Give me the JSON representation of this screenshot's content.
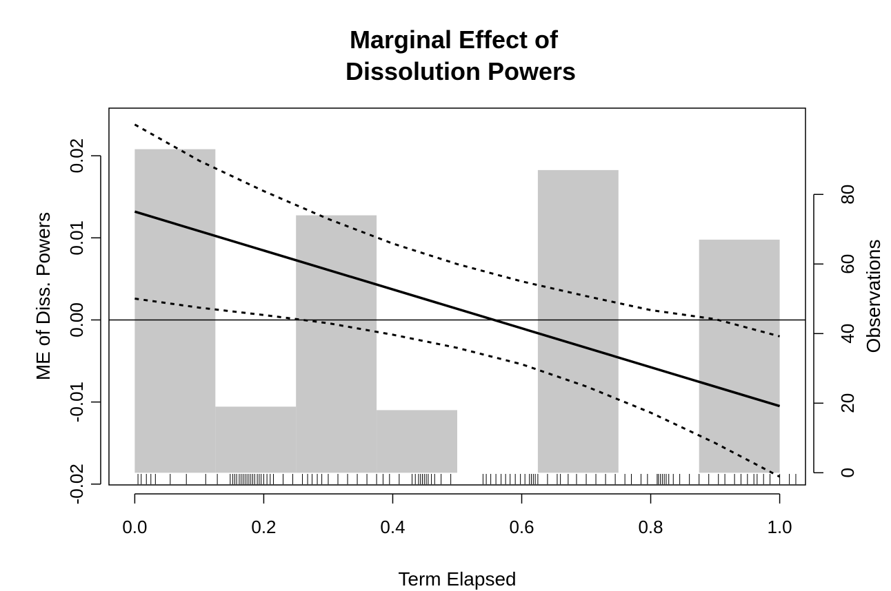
{
  "chart_data": {
    "type": "line",
    "title_lines": [
      "Marginal Effect of",
      "Dissolution Powers"
    ],
    "xlabel": "Term Elapsed",
    "ylabel": "ME of Diss. Powers",
    "y2label": "Observations",
    "xlim": [
      -0.04,
      1.04
    ],
    "ylim": [
      -0.0201,
      0.0258
    ],
    "y2lim": [
      -3.5,
      104.8
    ],
    "xticks": [
      0.0,
      0.2,
      0.4,
      0.6,
      0.8,
      1.0
    ],
    "xtick_labels": [
      "0.0",
      "0.2",
      "0.4",
      "0.6",
      "0.8",
      "1.0"
    ],
    "yticks": [
      -0.02,
      -0.01,
      0.0,
      0.01,
      0.02
    ],
    "ytick_labels": [
      "-0.02",
      "-0.01",
      "0.00",
      "0.01",
      "0.02"
    ],
    "y2ticks": [
      0,
      20,
      40,
      60,
      80
    ],
    "y2tick_labels": [
      "0",
      "20",
      "40",
      "60",
      "80"
    ],
    "reference_line_y": 0.0,
    "histogram": {
      "bins": [
        {
          "x0": 0.0,
          "x1": 0.125,
          "count": 93
        },
        {
          "x0": 0.125,
          "x1": 0.25,
          "count": 19
        },
        {
          "x0": 0.25,
          "x1": 0.375,
          "count": 74
        },
        {
          "x0": 0.375,
          "x1": 0.5,
          "count": 18
        },
        {
          "x0": 0.5,
          "x1": 0.625,
          "count": 0
        },
        {
          "x0": 0.625,
          "x1": 0.75,
          "count": 87
        },
        {
          "x0": 0.75,
          "x1": 0.875,
          "count": 0
        },
        {
          "x0": 0.875,
          "x1": 1.0,
          "count": 67
        }
      ],
      "color": "#c8c8c8"
    },
    "series": [
      {
        "role": "estimate",
        "style": "solid",
        "x": [
          0.0,
          1.0
        ],
        "y": [
          0.0132,
          -0.0105
        ]
      },
      {
        "role": "upper",
        "style": "dotted",
        "x": [
          0.0,
          0.1,
          0.2,
          0.3,
          0.4,
          0.5,
          0.6,
          0.7,
          0.8,
          0.9,
          1.0
        ],
        "y": [
          0.0238,
          0.0194,
          0.0157,
          0.0123,
          0.0093,
          0.0068,
          0.0047,
          0.0029,
          0.0012,
          0.0001,
          -0.002
        ]
      },
      {
        "role": "lower",
        "style": "dotted",
        "x": [
          0.0,
          0.1,
          0.2,
          0.3,
          0.4,
          0.5,
          0.6,
          0.7,
          0.8,
          0.9,
          1.0
        ],
        "y": [
          0.0026,
          0.0015,
          0.0006,
          -0.0004,
          -0.0018,
          -0.0034,
          -0.0054,
          -0.0081,
          -0.0113,
          -0.015,
          -0.0191
        ]
      }
    ],
    "rug_x": [
      0.005,
      0.01,
      0.018,
      0.025,
      0.032,
      0.055,
      0.08,
      0.11,
      0.128,
      0.148,
      0.152,
      0.155,
      0.158,
      0.162,
      0.165,
      0.168,
      0.171,
      0.174,
      0.177,
      0.18,
      0.183,
      0.186,
      0.19,
      0.193,
      0.196,
      0.2,
      0.205,
      0.21,
      0.215,
      0.23,
      0.245,
      0.26,
      0.268,
      0.275,
      0.283,
      0.29,
      0.3,
      0.315,
      0.33,
      0.345,
      0.36,
      0.375,
      0.385,
      0.395,
      0.41,
      0.43,
      0.435,
      0.44,
      0.443,
      0.446,
      0.449,
      0.452,
      0.455,
      0.46,
      0.465,
      0.475,
      0.49,
      0.54,
      0.545,
      0.552,
      0.56,
      0.568,
      0.575,
      0.582,
      0.59,
      0.598,
      0.605,
      0.612,
      0.615,
      0.618,
      0.621,
      0.625,
      0.64,
      0.655,
      0.66,
      0.672,
      0.685,
      0.7,
      0.715,
      0.73,
      0.745,
      0.76,
      0.77,
      0.785,
      0.795,
      0.81,
      0.812,
      0.815,
      0.818,
      0.821,
      0.824,
      0.828,
      0.835,
      0.845,
      0.86,
      0.875,
      0.89,
      0.905,
      0.915,
      0.93,
      0.94,
      0.95,
      0.96,
      0.965,
      0.975,
      0.985,
      1.0,
      1.015,
      1.025
    ]
  }
}
